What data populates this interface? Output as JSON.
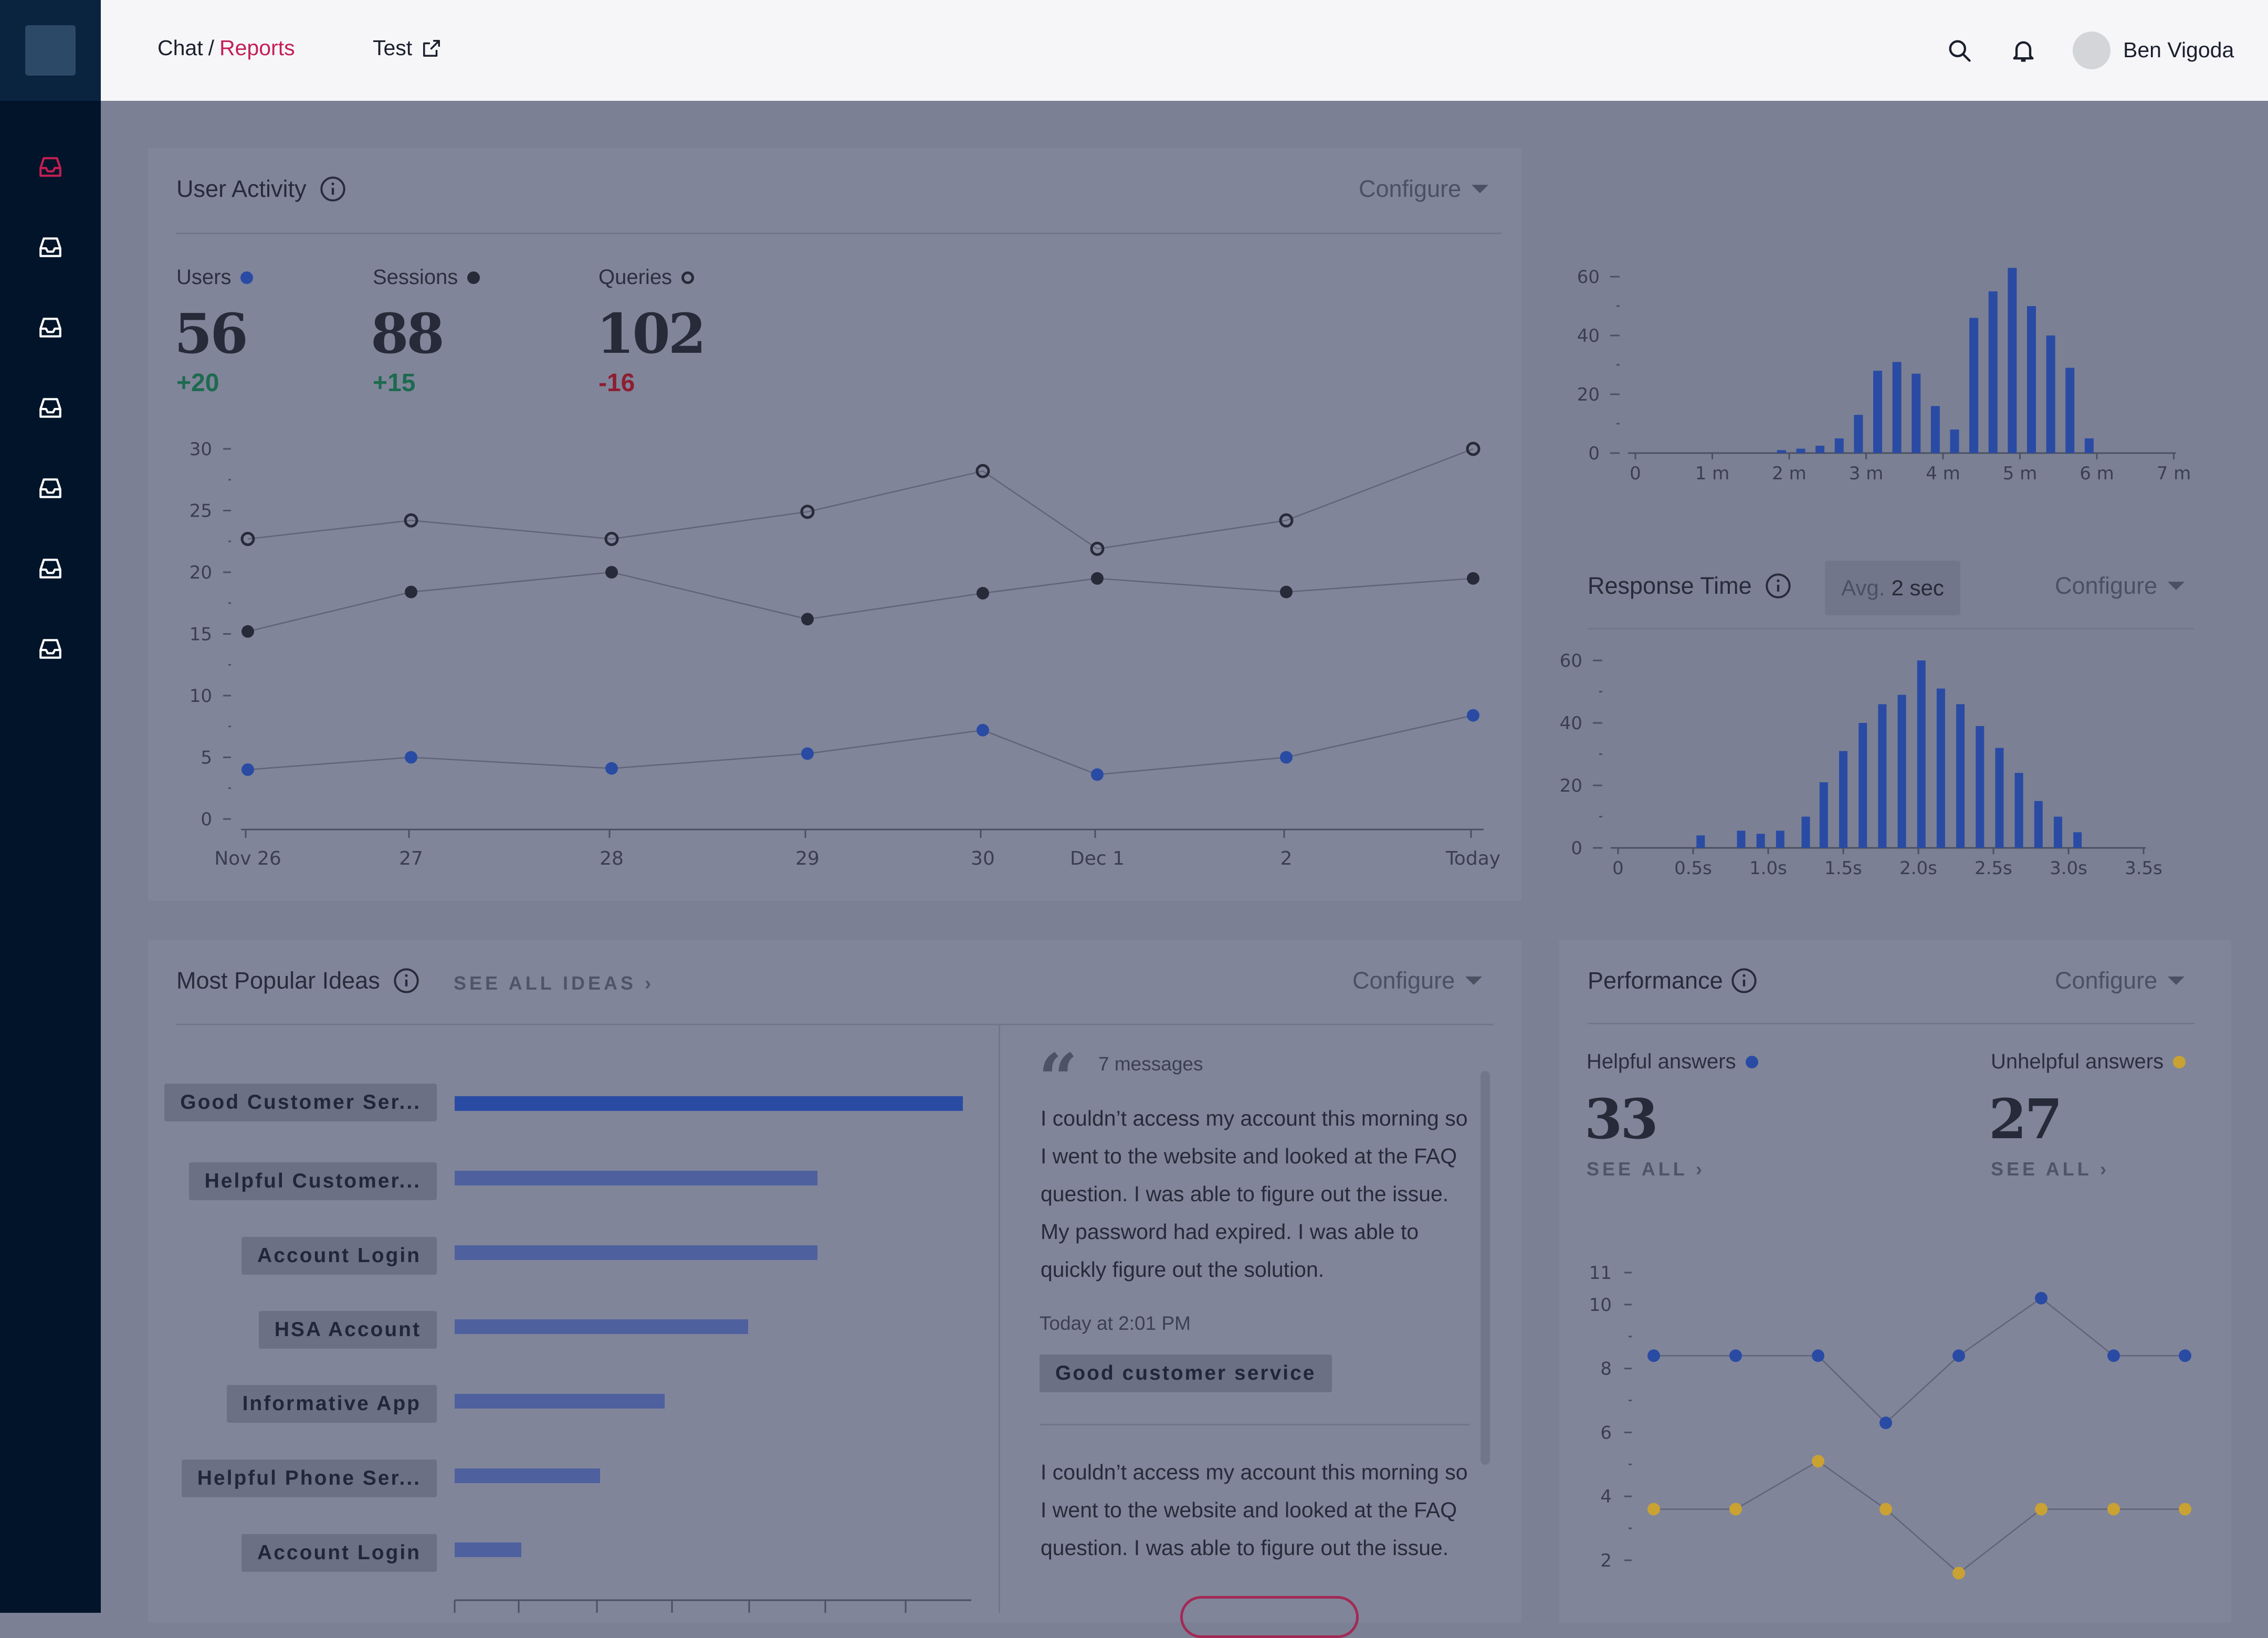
{
  "header": {
    "breadcrumb": {
      "parent": "Chat",
      "separator": "/",
      "current": "Reports"
    },
    "test_link": "Test",
    "user_name": "Ben Vigoda"
  },
  "sidebar": {
    "items": [
      {
        "icon": "inbox-icon",
        "active": true
      },
      {
        "icon": "inbox-icon",
        "active": false
      },
      {
        "icon": "inbox-icon",
        "active": false
      },
      {
        "icon": "inbox-icon",
        "active": false
      },
      {
        "icon": "inbox-icon",
        "active": false
      },
      {
        "icon": "inbox-icon",
        "active": false
      },
      {
        "icon": "inbox-icon",
        "active": false
      }
    ]
  },
  "user_activity": {
    "title": "User Activity",
    "configure": "Configure",
    "stats": [
      {
        "label": "Users",
        "value": "56",
        "delta": "+20"
      },
      {
        "label": "Sessions",
        "value": "88",
        "delta": "+15"
      },
      {
        "label": "Queries",
        "value": "102",
        "delta": "-16"
      }
    ]
  },
  "response_time": {
    "title": "Response Time",
    "avg_label": "Avg.",
    "avg_value": "2 sec",
    "configure": "Configure"
  },
  "most_popular_ideas": {
    "title": "Most Popular Ideas",
    "see_all": "SEE ALL IDEAS ›",
    "configure": "Configure",
    "ideas": [
      {
        "label": "Good Customer Ser...",
        "value": 1.0
      },
      {
        "label": "Helpful Customer...",
        "value": 0.714
      },
      {
        "label": "Account Login",
        "value": 0.714
      },
      {
        "label": "HSA Account",
        "value": 0.577
      },
      {
        "label": "Informative App",
        "value": 0.413
      },
      {
        "label": "Helpful Phone Ser...",
        "value": 0.286
      },
      {
        "label": "Account Login",
        "value": 0.131
      }
    ],
    "messages": {
      "count": "7 messages",
      "items": [
        {
          "text": "I couldn’t access my account this morning so I went to the website and looked at the FAQ question. I was able to figure out the issue. My password had expired. I was able to quickly figure out the solution.",
          "time": "Today at 2:01 PM",
          "tag": "Good customer service"
        },
        {
          "text": "I couldn’t access my account this morning so I went to the website and looked at the FAQ question. I was able to figure out the issue."
        }
      ]
    }
  },
  "performance": {
    "title": "Performance",
    "configure": "Configure",
    "helpful": {
      "label": "Helpful answers",
      "value": "33",
      "see_all": "SEE ALL ›"
    },
    "unhelpful": {
      "label": "Unhelpful answers",
      "value": "27",
      "see_all": "SEE ALL ›"
    }
  },
  "colors": {
    "accent": "#c41e53",
    "series_blue": "#2a4ba4",
    "series_dark": "#272a38",
    "series_yellow": "#c9a233",
    "positive": "#1e6a4f",
    "negative": "#8d1e31"
  },
  "chart_data": [
    {
      "id": "user-activity",
      "type": "line",
      "categories": [
        "Nov 26",
        "27",
        "28",
        "29",
        "30",
        "Dec 1",
        "2",
        "Today"
      ],
      "ylim": [
        0,
        30
      ],
      "yticks": [
        0,
        5,
        10,
        15,
        20,
        25,
        30
      ],
      "series": [
        {
          "name": "Queries",
          "marker": "hollow",
          "values": [
            22.7,
            24.2,
            22.7,
            24.9,
            28.2,
            21.9,
            24.2,
            30.0
          ]
        },
        {
          "name": "Sessions",
          "marker": "dark",
          "values": [
            15.2,
            18.4,
            20.0,
            16.2,
            18.3,
            19.5,
            18.4,
            19.5
          ]
        },
        {
          "name": "Users",
          "marker": "blue",
          "values": [
            4.0,
            5.0,
            4.1,
            5.3,
            7.2,
            3.6,
            5.0,
            8.4
          ]
        }
      ]
    },
    {
      "id": "session-length-histogram",
      "type": "bar",
      "xlim": [
        0,
        7
      ],
      "ylim": [
        0,
        65
      ],
      "xticks": [
        "0",
        "1 m",
        "2 m",
        "3 m",
        "4 m",
        "5 m",
        "6 m",
        "7 m"
      ],
      "yticks": [
        0,
        20,
        40,
        60
      ],
      "x": [
        1.9,
        2.15,
        2.4,
        2.65,
        2.9,
        3.15,
        3.4,
        3.65,
        3.9,
        4.15,
        4.4,
        4.65,
        4.9,
        5.15,
        5.4,
        5.65,
        5.9
      ],
      "values": [
        1,
        1.5,
        2.5,
        5,
        13,
        28,
        31,
        27,
        16,
        8,
        46,
        55,
        63,
        50,
        40,
        29,
        5
      ]
    },
    {
      "id": "response-time-histogram",
      "type": "bar",
      "xlim": [
        0,
        3.5
      ],
      "ylim": [
        0,
        60
      ],
      "xticks": [
        "0",
        "0.5s",
        "1.0s",
        "1.5s",
        "2.0s",
        "2.5s",
        "3.0s",
        "3.5s"
      ],
      "yticks": [
        0,
        20,
        40,
        60
      ],
      "x": [
        0.55,
        0.82,
        0.95,
        1.08,
        1.25,
        1.37,
        1.5,
        1.63,
        1.76,
        1.89,
        2.02,
        2.15,
        2.28,
        2.41,
        2.54,
        2.67,
        2.8,
        2.93,
        3.06,
        3.19
      ],
      "values": [
        4,
        5.5,
        4.5,
        5.5,
        10,
        21,
        31,
        40,
        46,
        49,
        60,
        51,
        46,
        39,
        32,
        24,
        15,
        10,
        5,
        0
      ]
    },
    {
      "id": "most-popular-ideas",
      "type": "bar",
      "orientation": "horizontal",
      "categories": [
        "Good Customer Ser...",
        "Helpful Customer...",
        "Account Login",
        "HSA Account",
        "Informative App",
        "Helpful Phone Ser...",
        "Account Login"
      ],
      "values": [
        1.0,
        0.714,
        0.714,
        0.577,
        0.413,
        0.286,
        0.131
      ]
    },
    {
      "id": "performance",
      "type": "line",
      "ylim": [
        1.5,
        11
      ],
      "yticks": [
        2,
        4,
        6,
        8,
        10,
        11
      ],
      "series": [
        {
          "name": "Helpful answers",
          "color": "#2a4ba4",
          "values": [
            8.4,
            8.4,
            8.4,
            6.3,
            8.4,
            10.2,
            8.4,
            8.4
          ]
        },
        {
          "name": "Unhelpful answers",
          "color": "#c9a233",
          "values": [
            3.6,
            3.6,
            5.1,
            3.6,
            1.6,
            3.6,
            3.6,
            3.6
          ]
        }
      ]
    }
  ]
}
